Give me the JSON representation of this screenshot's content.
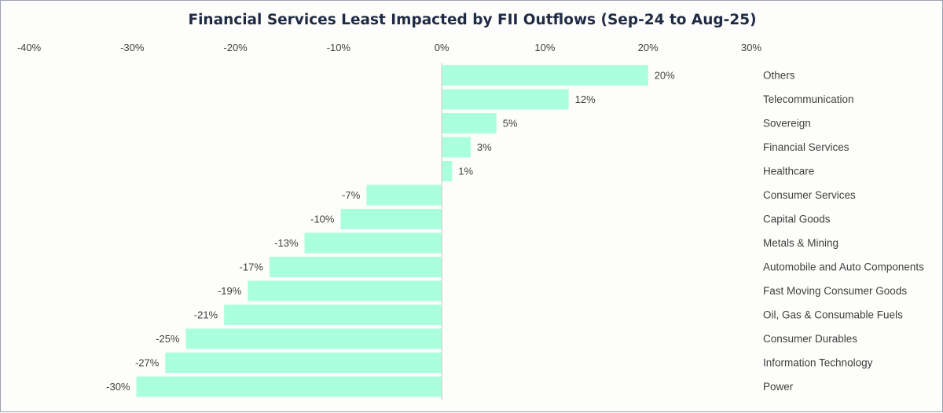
{
  "chart_data": {
    "type": "bar",
    "orientation": "horizontal",
    "title": "Financial Services Least Impacted by FII Outflows (Sep-24 to Aug-25)",
    "xlim": [
      -40,
      30
    ],
    "x_ticks": [
      -40,
      -30,
      -20,
      -10,
      0,
      10,
      20,
      30
    ],
    "x_tick_labels": [
      "-40%",
      "-30%",
      "-20%",
      "-10%",
      "0%",
      "10%",
      "20%",
      "30%"
    ],
    "categories": [
      "Others",
      "Telecommunication",
      "Sovereign",
      "Financial Services",
      "Healthcare",
      "Consumer Services",
      "Capital Goods",
      "Metals & Mining",
      "Automobile and Auto Components",
      "Fast Moving Consumer Goods",
      "Oil, Gas & Consumable Fuels",
      "Consumer Durables",
      "Information Technology",
      "Power"
    ],
    "values": [
      20,
      12.3,
      5.3,
      2.8,
      1,
      -7.3,
      -9.8,
      -13.3,
      -16.7,
      -18.8,
      -21.1,
      -24.8,
      -26.8,
      -29.6
    ],
    "data_labels": [
      "20%",
      "12%",
      "5%",
      "3%",
      "1%",
      "-7%",
      "-10%",
      "-13%",
      "-17%",
      "-19%",
      "-21%",
      "-25%",
      "-27%",
      "-30%"
    ],
    "bar_color": "#aaffdd",
    "axis_color": "#c8c8c8",
    "grid": false,
    "legend": "none"
  }
}
